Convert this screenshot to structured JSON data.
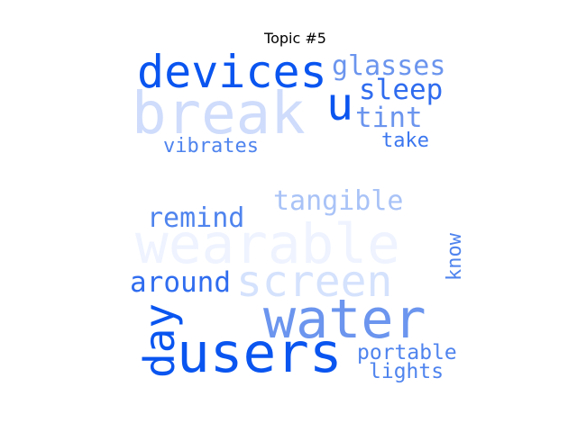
{
  "title": "Topic #5",
  "words": [
    {
      "id": "wearable",
      "text": "wearable",
      "color": "#eef3ff"
    },
    {
      "id": "break",
      "text": "break",
      "color": "#cfdcfb"
    },
    {
      "id": "devices",
      "text": "devices",
      "color": "#0a55f0"
    },
    {
      "id": "glasses",
      "text": "glasses",
      "color": "#6b95ee"
    },
    {
      "id": "u",
      "text": "u",
      "color": "#0a55f0"
    },
    {
      "id": "sleep",
      "text": "sleep",
      "color": "#2f6cef"
    },
    {
      "id": "tint",
      "text": "tint",
      "color": "#6b95ee"
    },
    {
      "id": "take",
      "text": "take",
      "color": "#3c77ef"
    },
    {
      "id": "vibrates",
      "text": "vibrates",
      "color": "#4f84ee"
    },
    {
      "id": "tangible",
      "text": "tangible",
      "color": "#a9c3f7"
    },
    {
      "id": "remind",
      "text": "remind",
      "color": "#4f84ee"
    },
    {
      "id": "screen",
      "text": "screen",
      "color": "#d5e2fd"
    },
    {
      "id": "know",
      "text": "know",
      "color": "#4f84ee"
    },
    {
      "id": "around",
      "text": "around",
      "color": "#2f6cef"
    },
    {
      "id": "water",
      "text": "water",
      "color": "#6b95ee"
    },
    {
      "id": "day",
      "text": "day",
      "color": "#0a55f0"
    },
    {
      "id": "users",
      "text": "users",
      "color": "#0a55f0"
    },
    {
      "id": "portable",
      "text": "portable",
      "color": "#4f84ee"
    },
    {
      "id": "lights",
      "text": "lights",
      "color": "#4f84ee"
    }
  ]
}
